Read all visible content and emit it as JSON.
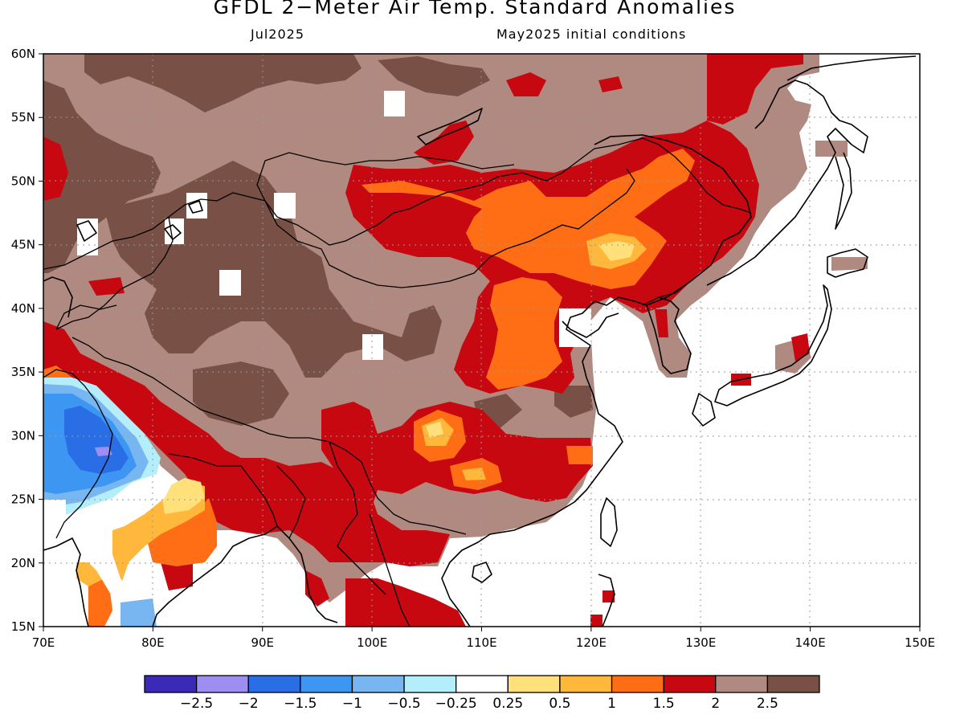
{
  "title": "GFDL 2−Meter Air Temp. Standard Anomalies",
  "valid_month": "Jul2025",
  "initial_conditions": "May2025 initial conditions",
  "x_ticks": [
    "70E",
    "80E",
    "90E",
    "100E",
    "110E",
    "120E",
    "130E",
    "140E",
    "150E"
  ],
  "y_ticks": [
    "60N",
    "55N",
    "50N",
    "45N",
    "40N",
    "35N",
    "30N",
    "25N",
    "20N",
    "15N"
  ],
  "legend": {
    "colors": [
      "#3b2ab8",
      "#9e8ef2",
      "#2a6ee6",
      "#3d96f2",
      "#78b6f2",
      "#b4eefa",
      "#ffffff",
      "#ffe07a",
      "#ffb83c",
      "#ff6e14",
      "#c80810",
      "#b08a80",
      "#785046"
    ],
    "labels": [
      "−2.5",
      "−2",
      "−1.5",
      "−1",
      "−0.5",
      "−0.25",
      "0.25",
      "0.5",
      "1",
      "1.5",
      "2",
      "2.5"
    ]
  },
  "map": {
    "domain_lon": [
      70,
      150
    ],
    "domain_lat": [
      15,
      60
    ],
    "variable": "2-meter air temperature standard anomaly",
    "colors": {
      "strong_pos": "#785046",
      "pos_2": "#b08a80",
      "pos_15": "#c80810",
      "pos_1": "#ff6e14",
      "pos_05": "#ffb83c",
      "pos_025": "#ffe07a",
      "neutral": "#ffffff",
      "neg_025": "#b4eefa",
      "neg_05": "#78b6f2",
      "neg_1": "#3d96f2",
      "neg_15": "#2a6ee6",
      "neg_2": "#9e8ef2"
    }
  }
}
